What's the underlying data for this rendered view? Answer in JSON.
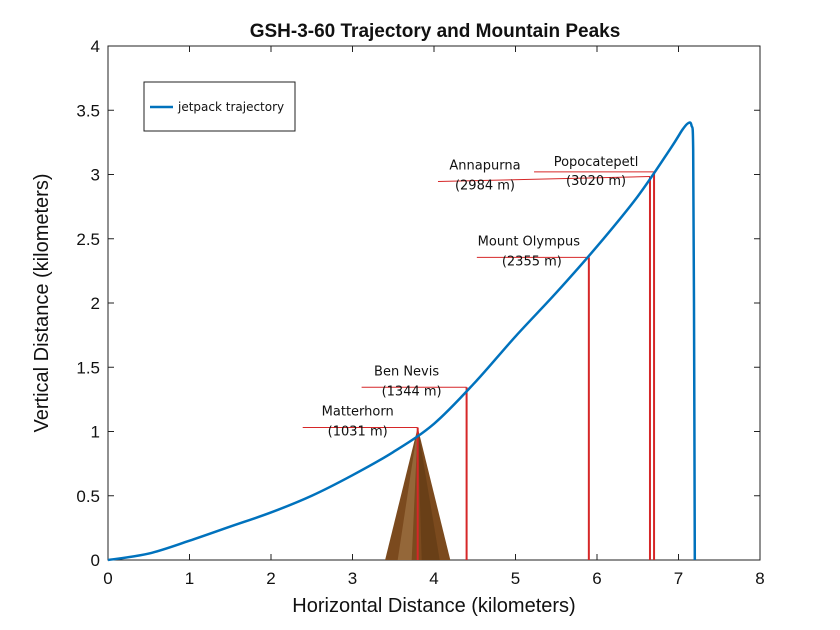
{
  "chart_data": {
    "type": "line",
    "title": "GSH-3-60 Trajectory and Mountain Peaks",
    "xlabel": "Horizontal Distance (kilometers)",
    "ylabel": "Vertical Distance (kilometers)",
    "xlim": [
      0,
      8
    ],
    "ylim": [
      0,
      4
    ],
    "xticks": [
      "0",
      "1",
      "2",
      "3",
      "4",
      "5",
      "6",
      "7",
      "8"
    ],
    "yticks": [
      "0",
      "0.5",
      "1",
      "1.5",
      "2",
      "2.5",
      "3",
      "3.5",
      "4"
    ],
    "grid": false,
    "legend": {
      "position": "top-left",
      "entries": [
        "jetpack trajectory"
      ]
    },
    "series": [
      {
        "name": "jetpack trajectory",
        "color": "#0072BD",
        "x": [
          0,
          0.5,
          1,
          1.5,
          2,
          2.5,
          3,
          3.5,
          4,
          4.5,
          5,
          5.5,
          6,
          6.5,
          6.9,
          7.05,
          7.12,
          7.16,
          7.18,
          7.19,
          7.2
        ],
        "y": [
          0,
          0.05,
          0.15,
          0.26,
          0.37,
          0.5,
          0.66,
          0.84,
          1.06,
          1.38,
          1.74,
          2.08,
          2.44,
          2.83,
          3.2,
          3.35,
          3.4,
          3.38,
          3.2,
          2.0,
          0
        ]
      }
    ],
    "annotations": [
      {
        "name": "Matterhorn",
        "elevation": "(1031 m)",
        "x": 3.8,
        "y": 1.031,
        "color": "#D62728"
      },
      {
        "name": "Ben Nevis",
        "elevation": "(1344 m)",
        "x": 4.4,
        "y": 1.344,
        "color": "#D62728"
      },
      {
        "name": "Mount Olympus",
        "elevation": "(2355 m)",
        "x": 5.9,
        "y": 2.355,
        "color": "#D62728"
      },
      {
        "name": "Annapurna",
        "elevation": "(2984 m)",
        "x": 6.65,
        "y": 2.984,
        "color": "#D62728"
      },
      {
        "name": "Popocatepetl",
        "elevation": "(3020 m)",
        "x": 6.7,
        "y": 3.02,
        "color": "#D62728"
      }
    ],
    "mountain": {
      "peak_x": 3.8,
      "peak_y": 1.031,
      "base_x": [
        3.4,
        4.2
      ],
      "color": "#7B4A1E"
    }
  }
}
